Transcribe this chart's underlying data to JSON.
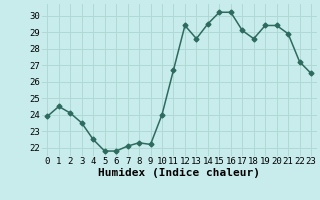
{
  "x": [
    0,
    1,
    2,
    3,
    4,
    5,
    6,
    7,
    8,
    9,
    10,
    11,
    12,
    13,
    14,
    15,
    16,
    17,
    18,
    19,
    20,
    21,
    22,
    23
  ],
  "y": [
    23.9,
    24.5,
    24.1,
    23.5,
    22.5,
    21.8,
    21.8,
    22.1,
    22.3,
    22.2,
    24.0,
    26.7,
    29.4,
    28.6,
    29.5,
    30.2,
    30.2,
    29.1,
    28.6,
    29.4,
    29.4,
    28.9,
    27.2,
    26.5
  ],
  "line_color": "#2d6b5e",
  "marker": "D",
  "marker_size": 2.5,
  "bg_color": "#c8ecec",
  "grid_color": "#b0d8d4",
  "xlabel": "Humidex (Indice chaleur)",
  "ylim": [
    21.5,
    30.7
  ],
  "xlim": [
    -0.5,
    23.5
  ],
  "yticks": [
    22,
    23,
    24,
    25,
    26,
    27,
    28,
    29,
    30
  ],
  "xticks": [
    0,
    1,
    2,
    3,
    4,
    5,
    6,
    7,
    8,
    9,
    10,
    11,
    12,
    13,
    14,
    15,
    16,
    17,
    18,
    19,
    20,
    21,
    22,
    23
  ],
  "tick_fontsize": 6.5,
  "xlabel_fontsize": 8,
  "linewidth": 1.1
}
